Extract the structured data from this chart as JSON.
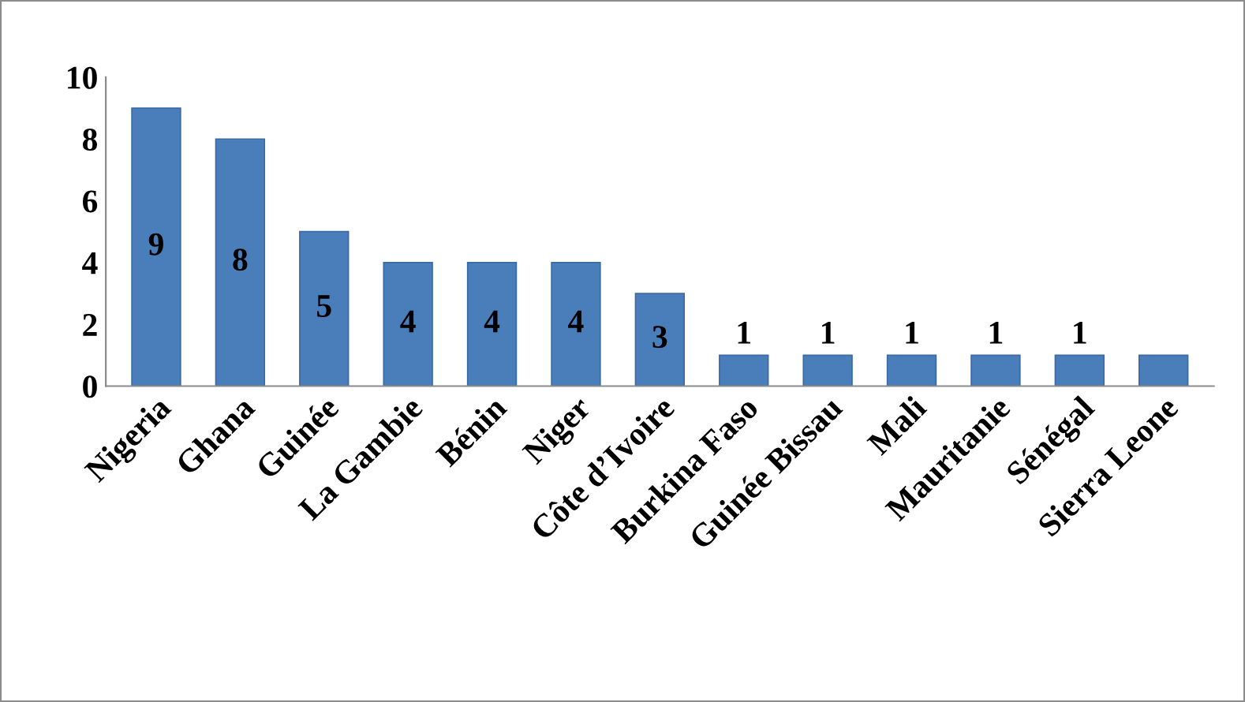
{
  "chart_data": {
    "type": "bar",
    "categories": [
      "Nigeria",
      "Ghana",
      "Guinée",
      "La Gambie",
      "Bénin",
      "Niger",
      "Côte d’Ivoire",
      "Burkina Faso",
      "Guinée Bissau",
      "Mali",
      "Mauritanie",
      "Sénégal",
      "Sierra Leone"
    ],
    "values": [
      9,
      8,
      5,
      4,
      4,
      4,
      3,
      1,
      1,
      1,
      1,
      1,
      1
    ],
    "value_labels": [
      "9",
      "8",
      "5",
      "4",
      "4",
      "4",
      "3",
      "1",
      "1",
      "1",
      "1",
      "1",
      null
    ],
    "color": "#4a7ebb",
    "ylim": [
      0,
      10
    ],
    "yticks": [
      0,
      2,
      4,
      6,
      8,
      10
    ],
    "grid": false
  }
}
